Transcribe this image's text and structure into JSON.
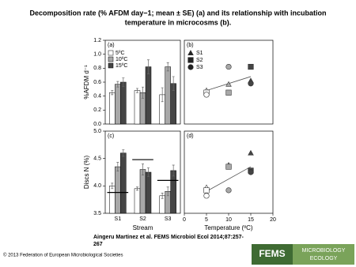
{
  "title_lines": [
    "Decomposition rate (% AFDM day−1; mean ± SE) (a) and its relationship with incubation",
    "temperature in microcosms (b)."
  ],
  "citation_lines": [
    "Aingeru Martinez et al. FEMS Microbiol Ecol 2014;87:257-",
    "267"
  ],
  "footer": "© 2013 Federation of European Microbiological Societies",
  "logo": {
    "name": "FEMS",
    "line1": "MICROBIOLOGY",
    "line2": "ECOLOGY"
  },
  "chart_data": [
    {
      "type": "bar",
      "panel": "(a)",
      "ylabel": "%AFDM d⁻¹",
      "categories": [
        null,
        null,
        null
      ],
      "ylim": [
        0,
        1.2
      ],
      "yticks": [
        {
          "value": 0,
          "label": "0.0"
        },
        0.2,
        0.4,
        0.6,
        0.8,
        {
          "value": 1,
          "label": "1.0"
        },
        1.2
      ],
      "series": [
        {
          "name": "5ºC",
          "color": "#ffffff",
          "values": [
            0.45,
            0.48,
            0.42
          ],
          "errors": [
            0.03,
            0.03,
            0.1
          ]
        },
        {
          "name": "10ºC",
          "color": "#a8a8a8",
          "values": [
            0.57,
            0.45,
            0.82
          ],
          "errors": [
            0.04,
            0.08,
            0.06
          ]
        },
        {
          "name": "15ºC",
          "color": "#454545",
          "values": [
            0.6,
            0.82,
            0.58
          ],
          "errors": [
            0.06,
            0.1,
            0.1
          ]
        }
      ]
    },
    {
      "type": "scatter",
      "panel": "(b)",
      "xlim": [
        0,
        20
      ],
      "ylim": [
        0,
        1.2
      ],
      "series": [
        {
          "name": "S1",
          "marker": "triangle",
          "colors": [
            "#ffffff",
            "#a8a8a8",
            "#454545"
          ],
          "x": [
            5,
            10,
            15
          ],
          "values": [
            0.48,
            0.57,
            0.62
          ]
        },
        {
          "name": "S2",
          "marker": "square",
          "colors": [
            "#ffffff",
            "#a8a8a8",
            "#454545"
          ],
          "x": [
            5,
            10,
            15
          ],
          "values": [
            0.45,
            0.45,
            0.82
          ]
        },
        {
          "name": "S3",
          "marker": "circle",
          "colors": [
            "#ffffff",
            "#a8a8a8",
            "#454545"
          ],
          "x": [
            5,
            10,
            15
          ],
          "values": [
            0.42,
            0.82,
            0.58
          ]
        }
      ],
      "trend_line": {
        "x": [
          5,
          15
        ],
        "values": [
          0.48,
          0.68
        ]
      }
    },
    {
      "type": "bar",
      "panel": "(c)",
      "ylabel": "Discs N (%)",
      "xlabel": "Stream",
      "categories": [
        "S1",
        "S2",
        "S3"
      ],
      "ylim": [
        3.5,
        5
      ],
      "yticks": [
        3.5,
        {
          "value": 4,
          "label": "4.0"
        },
        4.5,
        {
          "value": 5,
          "label": "5.0"
        }
      ],
      "series": [
        {
          "color": "#ffffff",
          "values": [
            4,
            3.95,
            3.82
          ],
          "errors": [
            0.05,
            0.03,
            0.05
          ]
        },
        {
          "color": "#a8a8a8",
          "values": [
            4.35,
            4.3,
            3.9
          ],
          "errors": [
            0.08,
            0.1,
            0.08
          ]
        },
        {
          "color": "#454545",
          "values": [
            4.6,
            4.25,
            4.28
          ],
          "errors": [
            0.06,
            0.08,
            0.1
          ]
        }
      ],
      "reference_lines": [
        3.88,
        4.48,
        4.1
      ]
    },
    {
      "type": "scatter",
      "panel": "(d)",
      "xlabel": "Temperature (ºC)",
      "xlim": [
        0,
        20
      ],
      "xticks": [
        0,
        5,
        10,
        15,
        20
      ],
      "ylim": [
        3.5,
        5
      ],
      "series": [
        {
          "marker": "triangle",
          "colors": [
            "#ffffff",
            "#a8a8a8",
            "#454545"
          ],
          "x": [
            5,
            10,
            15
          ],
          "values": [
            3.97,
            4.38,
            4.6
          ]
        },
        {
          "marker": "square",
          "colors": [
            "#ffffff",
            "#a8a8a8",
            "#454545"
          ],
          "x": [
            5,
            10,
            15
          ],
          "values": [
            3.92,
            4.35,
            4.28
          ]
        },
        {
          "marker": "circle",
          "colors": [
            "#ffffff",
            "#a8a8a8",
            "#454545"
          ],
          "x": [
            5,
            10,
            15
          ],
          "values": [
            3.82,
            3.92,
            4.25
          ]
        }
      ],
      "trend_line": {
        "x": [
          5,
          15
        ],
        "values": [
          3.9,
          4.35
        ]
      }
    }
  ]
}
